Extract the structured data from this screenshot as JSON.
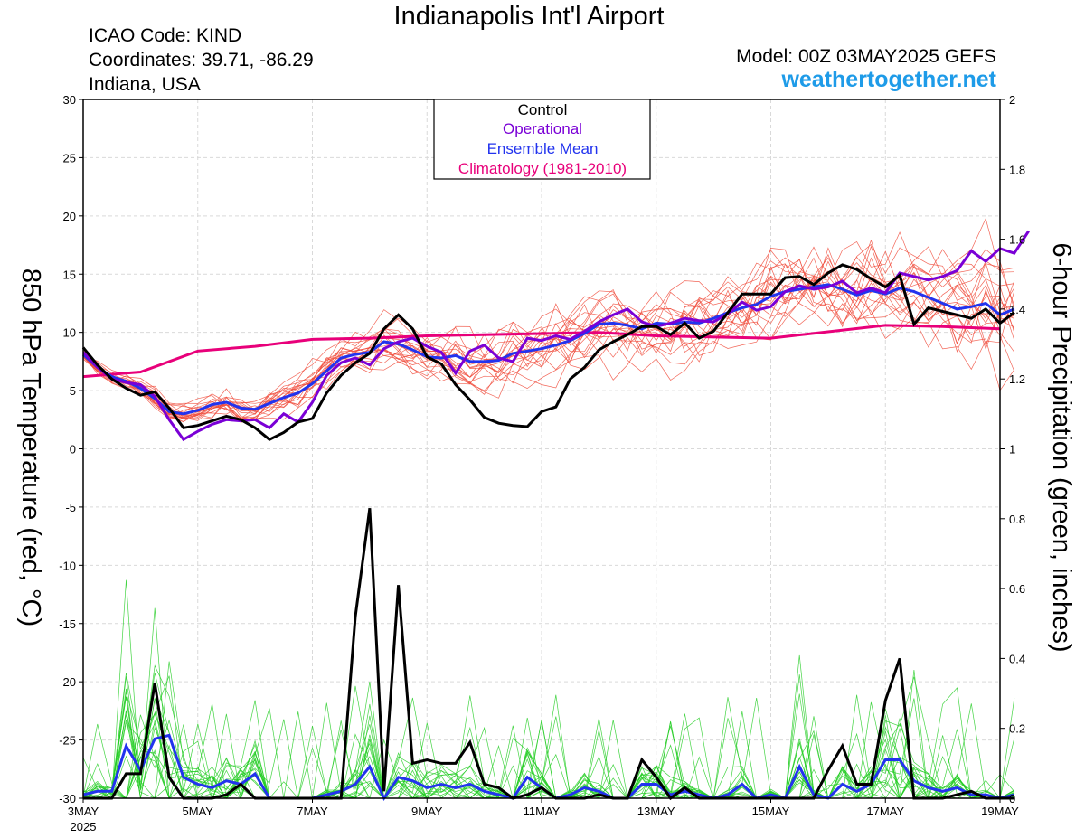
{
  "header": {
    "title": "Indianapolis Int'l Airport",
    "icao": "ICAO Code: KIND",
    "coordinates": "Coordinates: 39.71, -86.29",
    "region": "Indiana, USA",
    "model": "Model: 00Z 03MAY2025 GEFS",
    "site": "weathertogether.net"
  },
  "colors": {
    "control": "#000000",
    "operational": "#7a00d6",
    "ensemble_mean": "#2233ee",
    "climatology": "#e8007a",
    "temp_members": "#f04a3a",
    "precip_members": "#22cc22",
    "site": "#1e9be8"
  },
  "chart_data": {
    "type": "line",
    "x_start": "2025-05-03T00Z",
    "x_step_hours": 6,
    "x_tick_labels": [
      "3MAY",
      "5MAY",
      "7MAY",
      "9MAY",
      "11MAY",
      "13MAY",
      "15MAY",
      "17MAY",
      "19MAY"
    ],
    "x_year_label": "2025",
    "y_left": {
      "label": "850 hPa Temperature (red, °C)",
      "range": [
        -30,
        30
      ],
      "ticks": [
        "30",
        "25",
        "20",
        "15",
        "10",
        "5",
        "0",
        "-5",
        "-10",
        "-15",
        "-20",
        "-25",
        "-30"
      ]
    },
    "y_right": {
      "label": "6-hour Precipitation (green, inches)",
      "range": [
        0,
        2
      ],
      "ticks": [
        "2",
        "1.8",
        "1.6",
        "1.4",
        "1.2",
        "1",
        "0.8",
        "0.6",
        "0.4",
        "0.2",
        "0"
      ]
    },
    "legend": [
      "Control",
      "Operational",
      "Ensemble Mean",
      "Climatology (1981-2010)"
    ],
    "legend_position": "top-center",
    "temperature": {
      "control": [
        8.7,
        7.2,
        6.0,
        5.2,
        4.6,
        4.9,
        3.5,
        1.8,
        2.0,
        2.4,
        2.8,
        2.5,
        1.8,
        0.8,
        1.4,
        2.3,
        2.6,
        4.8,
        6.3,
        7.4,
        8.2,
        10.3,
        11.5,
        10.3,
        7.9,
        7.3,
        5.5,
        4.2,
        2.7,
        2.2,
        2.0,
        1.9,
        3.2,
        3.6,
        6.0,
        7.0,
        8.5,
        9.2,
        9.8,
        10.5,
        10.5,
        9.8,
        10.8,
        9.5,
        10.1,
        11.7,
        13.3,
        13.3,
        13.3,
        14.7,
        14.8,
        14.1,
        15.1,
        15.8,
        15.4,
        14.6,
        13.9,
        14.9,
        10.7,
        12.1,
        11.8,
        11.5,
        11.2,
        12.0,
        10.8,
        11.7
      ],
      "operational": [
        8.3,
        7.0,
        6.0,
        5.7,
        5.5,
        4.5,
        2.5,
        0.8,
        1.5,
        2.1,
        2.5,
        2.4,
        2.5,
        1.8,
        3.0,
        2.3,
        4.0,
        6.3,
        7.4,
        7.8,
        7.2,
        8.6,
        9.2,
        9.5,
        8.8,
        8.3,
        6.5,
        8.4,
        8.9,
        7.8,
        7.5,
        9.5,
        9.3,
        9.7,
        9.4,
        10.1,
        10.9,
        11.5,
        12.0,
        10.9,
        10.5,
        10.8,
        11.2,
        11.0,
        10.9,
        11.6,
        12.6,
        11.9,
        12.2,
        13.5,
        14.0,
        13.7,
        13.9,
        14.4,
        13.4,
        13.8,
        13.4,
        15.1,
        14.8,
        14.5,
        14.8,
        15.3,
        17.0,
        16.1,
        17.2,
        16.8,
        18.7
      ],
      "ensemble_mean": [
        8.1,
        7.0,
        6.2,
        5.8,
        5.2,
        4.3,
        3.2,
        3.0,
        3.3,
        3.8,
        4.0,
        3.5,
        3.4,
        3.9,
        4.4,
        4.8,
        5.6,
        6.7,
        7.8,
        8.1,
        8.3,
        9.2,
        9.0,
        8.5,
        7.9,
        7.8,
        8.0,
        7.5,
        7.5,
        7.6,
        8.2,
        8.4,
        8.6,
        8.9,
        9.3,
        9.9,
        10.7,
        10.8,
        10.6,
        10.3,
        10.8,
        10.7,
        10.9,
        10.8,
        11.2,
        11.7,
        12.1,
        12.4,
        13.1,
        13.5,
        13.7,
        13.9,
        14.1,
        13.7,
        13.2,
        13.6,
        13.3,
        13.8,
        13.5,
        13.0,
        12.5,
        12.0,
        12.2,
        12.5,
        11.5,
        12.0
      ],
      "climatology": [
        6.2,
        6.6,
        8.4,
        8.8,
        9.4,
        9.5,
        9.7,
        9.8,
        9.9,
        10.0,
        9.7,
        9.5,
        10.6,
        10.5,
        10.3
      ],
      "climatology_step_hours": [
        0,
        24,
        48,
        72,
        96,
        120,
        144,
        168,
        192,
        216,
        240,
        288,
        336,
        360,
        384
      ]
    },
    "precipitation": {
      "control": [
        0.0,
        0.0,
        0.0,
        0.07,
        0.07,
        0.33,
        0.06,
        0.0,
        0.0,
        0.0,
        0.01,
        0.04,
        0.0,
        0.0,
        0.0,
        0.0,
        0.0,
        0.0,
        0.0,
        0.52,
        0.83,
        0.02,
        0.61,
        0.1,
        0.11,
        0.1,
        0.1,
        0.16,
        0.04,
        0.03,
        0.0,
        0.01,
        0.03,
        0.0,
        0.0,
        0.0,
        0.01,
        0.0,
        0.0,
        0.11,
        0.06,
        0.0,
        0.03,
        0.0,
        0.0,
        0.0,
        0.0,
        0.0,
        0.0,
        0.0,
        0.0,
        0.0,
        0.08,
        0.15,
        0.04,
        0.04,
        0.28,
        0.4,
        0.0,
        0.0,
        0.0,
        0.01,
        0.02,
        0.0,
        0.0,
        0.0
      ],
      "ensemble_mean": [
        0.01,
        0.02,
        0.02,
        0.15,
        0.08,
        0.17,
        0.18,
        0.06,
        0.04,
        0.03,
        0.05,
        0.04,
        0.07,
        0.0,
        0.0,
        0.0,
        0.0,
        0.01,
        0.02,
        0.04,
        0.09,
        0.0,
        0.06,
        0.05,
        0.03,
        0.04,
        0.03,
        0.04,
        0.02,
        0.01,
        0.0,
        0.06,
        0.03,
        0.0,
        0.01,
        0.03,
        0.02,
        0.0,
        0.0,
        0.04,
        0.04,
        0.01,
        0.02,
        0.01,
        0.0,
        0.01,
        0.04,
        0.0,
        0.01,
        0.0,
        0.09,
        0.01,
        0.0,
        0.04,
        0.02,
        0.04,
        0.11,
        0.11,
        0.05,
        0.03,
        0.02,
        0.03,
        0.01,
        0.01,
        0.0,
        0.01
      ]
    }
  }
}
